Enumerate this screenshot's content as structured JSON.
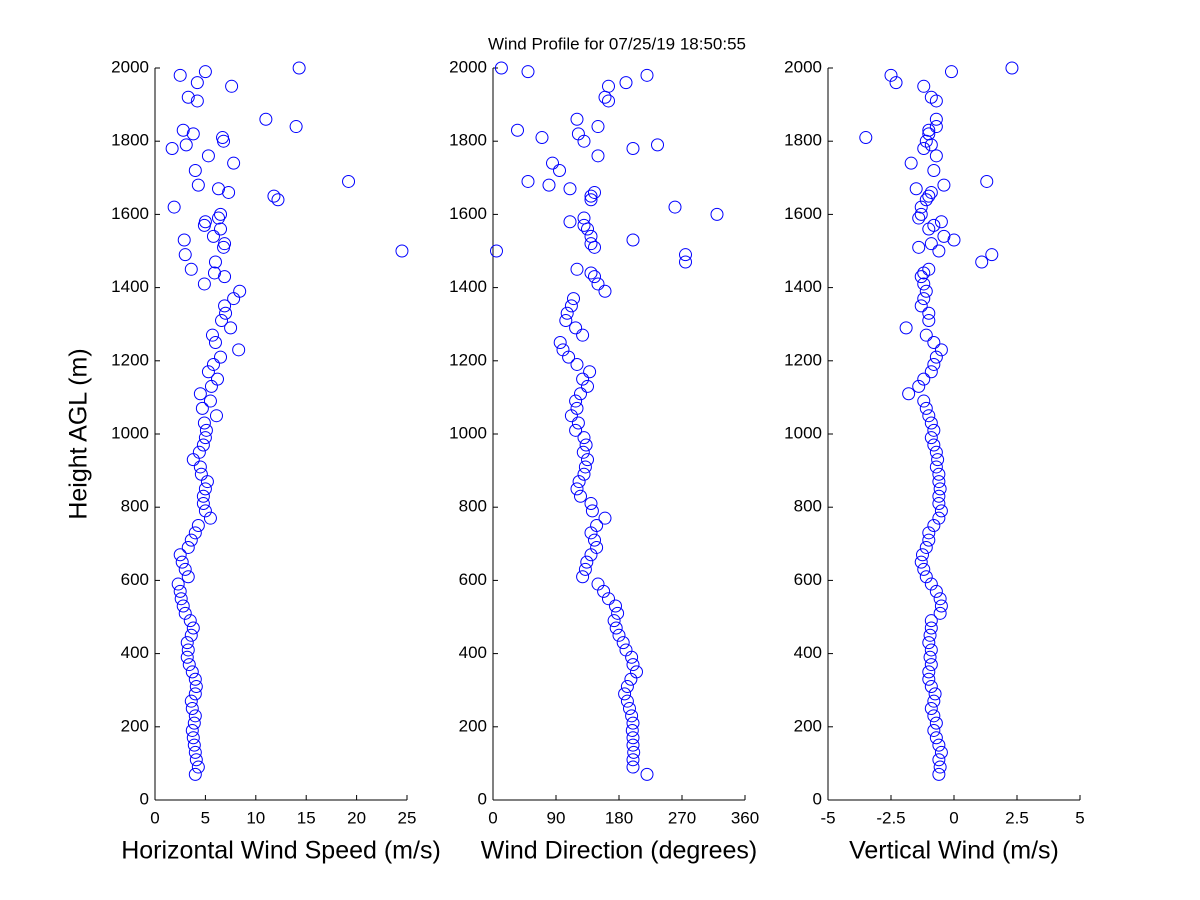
{
  "title": "Wind Profile for  07/25/19 18:50:55",
  "chart_data": [
    {
      "type": "scatter",
      "x_label": "Horizontal Wind Speed (m/s)",
      "y_label": "Height AGL (m)",
      "color": "#0000ff",
      "xlim": [
        0,
        25
      ],
      "xticks": [
        0,
        5,
        10,
        15,
        20,
        25
      ],
      "ylim": [
        0,
        2000
      ],
      "yticks": [
        0,
        200,
        400,
        600,
        800,
        1000,
        1200,
        1400,
        1600,
        1800,
        2000
      ],
      "x": [
        4.0,
        4.3,
        4.1,
        4.0,
        3.9,
        3.8,
        3.7,
        3.9,
        4.0,
        3.7,
        3.6,
        4.0,
        4.1,
        4.0,
        3.7,
        3.4,
        3.2,
        3.3,
        3.2,
        3.6,
        3.8,
        3.5,
        3.0,
        2.8,
        2.6,
        2.5,
        2.3,
        3.3,
        3.0,
        2.7,
        2.5,
        3.3,
        3.6,
        4.0,
        4.3,
        5.5,
        5.0,
        4.8,
        4.8,
        5.0,
        5.2,
        4.6,
        4.5,
        3.8,
        4.4,
        4.8,
        5.0,
        5.1,
        4.9,
        6.1,
        4.7,
        5.5,
        4.5,
        5.6,
        6.2,
        5.3,
        5.8,
        6.5,
        8.3,
        6.0,
        5.7,
        7.5,
        6.6,
        7.0,
        6.9,
        7.8,
        8.4,
        14.3,
        5,
        2.5,
        4.2,
        7.6,
        3.3,
        4.2,
        11,
        14,
        2.8,
        3.8,
        6.7,
        6.8,
        3.1,
        1.7,
        5.3,
        7.8,
        4,
        19.2,
        4.3,
        6.3,
        7.3,
        11.8,
        12.2,
        1.9,
        6.5,
        6.3,
        5.0,
        4.9,
        6.5,
        5.8,
        2.9,
        6.9,
        6.8,
        24.5,
        3,
        6,
        3.6,
        5.9,
        6.9,
        4.9
      ],
      "values": [
        70,
        90,
        110,
        130,
        150,
        170,
        190,
        210,
        230,
        250,
        270,
        290,
        310,
        330,
        350,
        370,
        390,
        410,
        430,
        450,
        470,
        490,
        510,
        530,
        550,
        570,
        590,
        610,
        630,
        650,
        670,
        690,
        710,
        730,
        750,
        770,
        790,
        810,
        830,
        850,
        870,
        890,
        910,
        930,
        950,
        970,
        990,
        1010,
        1030,
        1050,
        1070,
        1090,
        1110,
        1130,
        1150,
        1170,
        1190,
        1210,
        1230,
        1250,
        1270,
        1290,
        1310,
        1330,
        1350,
        1370,
        1390,
        2000,
        1990,
        1980,
        1960,
        1950,
        1920,
        1910,
        1860,
        1840,
        1830,
        1820,
        1810,
        1800,
        1790,
        1780,
        1760,
        1740,
        1720,
        1690,
        1680,
        1670,
        1660,
        1650,
        1640,
        1620,
        1600,
        1590,
        1580,
        1570,
        1560,
        1540,
        1530,
        1520,
        1510,
        1500,
        1490,
        1470,
        1450,
        1440,
        1430,
        1410
      ]
    },
    {
      "type": "scatter",
      "x_label": "Wind Direction (degrees)",
      "color": "#0000ff",
      "xlim": [
        0,
        360
      ],
      "xticks": [
        0,
        90,
        180,
        270,
        360
      ],
      "ylim": [
        0,
        2000
      ],
      "yticks": [
        0,
        200,
        400,
        600,
        800,
        1000,
        1200,
        1400,
        1600,
        1800,
        2000
      ],
      "x": [
        220,
        200,
        200,
        201,
        200,
        200,
        199,
        200,
        198,
        195,
        192,
        188,
        192,
        197,
        205,
        200,
        198,
        190,
        186,
        180,
        176,
        173,
        178,
        175,
        165,
        158,
        150,
        128,
        132,
        134,
        140,
        148,
        145,
        140,
        148,
        160,
        142,
        140,
        125,
        120,
        123,
        130,
        132,
        135,
        129,
        133,
        130,
        118,
        122,
        112,
        120,
        118,
        125,
        135,
        128,
        138,
        120,
        108,
        100,
        96,
        128,
        118,
        104,
        106,
        112,
        115,
        160,
        12,
        50,
        220,
        190,
        165,
        160,
        165,
        120,
        150,
        35,
        122,
        70,
        130,
        235,
        200,
        150,
        85,
        95,
        50,
        80,
        110,
        145,
        140,
        140,
        260,
        320,
        130,
        110,
        130,
        135,
        140,
        200,
        140,
        145,
        5,
        275,
        275,
        120,
        140,
        145,
        150
      ],
      "values": [
        70,
        90,
        110,
        130,
        150,
        170,
        190,
        210,
        230,
        250,
        270,
        290,
        310,
        330,
        350,
        370,
        390,
        410,
        430,
        450,
        470,
        490,
        510,
        530,
        550,
        570,
        590,
        610,
        630,
        650,
        670,
        690,
        710,
        730,
        750,
        770,
        790,
        810,
        830,
        850,
        870,
        890,
        910,
        930,
        950,
        970,
        990,
        1010,
        1030,
        1050,
        1070,
        1090,
        1110,
        1130,
        1150,
        1170,
        1190,
        1210,
        1230,
        1250,
        1270,
        1290,
        1310,
        1330,
        1350,
        1370,
        1390,
        2000,
        1990,
        1980,
        1960,
        1950,
        1920,
        1910,
        1860,
        1840,
        1830,
        1820,
        1810,
        1800,
        1790,
        1780,
        1760,
        1740,
        1720,
        1690,
        1680,
        1670,
        1660,
        1650,
        1640,
        1620,
        1600,
        1590,
        1580,
        1570,
        1560,
        1540,
        1530,
        1520,
        1510,
        1500,
        1490,
        1470,
        1450,
        1440,
        1430,
        1410
      ]
    },
    {
      "type": "scatter",
      "x_label": "Vertical Wind (m/s)",
      "color": "#0000ff",
      "xlim": [
        -5,
        5
      ],
      "xticks": [
        -5,
        -2.5,
        0,
        2.5,
        5
      ],
      "ylim": [
        0,
        2000
      ],
      "yticks": [
        0,
        200,
        400,
        600,
        800,
        1000,
        1200,
        1400,
        1600,
        1800,
        2000
      ],
      "x": [
        -0.6,
        -0.55,
        -0.6,
        -0.5,
        -0.6,
        -0.7,
        -0.8,
        -0.7,
        -0.8,
        -0.9,
        -0.8,
        -0.75,
        -0.9,
        -1.0,
        -1.0,
        -0.9,
        -0.95,
        -0.9,
        -1.0,
        -0.95,
        -0.9,
        -0.9,
        -0.55,
        -0.5,
        -0.55,
        -0.7,
        -0.9,
        -1.1,
        -1.2,
        -1.3,
        -1.25,
        -1.1,
        -1.0,
        -1.0,
        -0.8,
        -0.6,
        -0.5,
        -0.6,
        -0.6,
        -0.55,
        -0.6,
        -0.6,
        -0.7,
        -0.65,
        -0.7,
        -0.8,
        -0.9,
        -0.8,
        -0.9,
        -1.0,
        -1.1,
        -1.2,
        -1.8,
        -1.4,
        -1.2,
        -0.9,
        -0.8,
        -0.7,
        -0.5,
        -0.8,
        -1.1,
        -1.9,
        -1.0,
        -1.0,
        -1.3,
        -1.2,
        -1.1,
        2.3,
        -0.1,
        -2.5,
        -2.3,
        -1.2,
        -0.9,
        -0.7,
        -0.7,
        -0.7,
        -1.0,
        -1.0,
        -3.5,
        -1.1,
        -0.9,
        -1.2,
        -0.7,
        -1.7,
        -0.8,
        1.3,
        -0.4,
        -1.5,
        -0.9,
        -1.0,
        -1.1,
        -1.3,
        -1.3,
        -1.4,
        -0.5,
        -0.8,
        -1.0,
        -0.4,
        0.0,
        -0.9,
        -1.4,
        -0.6,
        1.5,
        1.1,
        -1.0,
        -1.2,
        -1.3,
        -1.2
      ],
      "values": [
        70,
        90,
        110,
        130,
        150,
        170,
        190,
        210,
        230,
        250,
        270,
        290,
        310,
        330,
        350,
        370,
        390,
        410,
        430,
        450,
        470,
        490,
        510,
        530,
        550,
        570,
        590,
        610,
        630,
        650,
        670,
        690,
        710,
        730,
        750,
        770,
        790,
        810,
        830,
        850,
        870,
        890,
        910,
        930,
        950,
        970,
        990,
        1010,
        1030,
        1050,
        1070,
        1090,
        1110,
        1130,
        1150,
        1170,
        1190,
        1210,
        1230,
        1250,
        1270,
        1290,
        1310,
        1330,
        1350,
        1370,
        1390,
        2000,
        1990,
        1980,
        1960,
        1950,
        1920,
        1910,
        1860,
        1840,
        1830,
        1820,
        1810,
        1800,
        1790,
        1780,
        1760,
        1740,
        1720,
        1690,
        1680,
        1670,
        1660,
        1650,
        1640,
        1620,
        1600,
        1590,
        1580,
        1570,
        1560,
        1540,
        1530,
        1520,
        1510,
        1500,
        1490,
        1470,
        1450,
        1440,
        1430,
        1410
      ]
    }
  ]
}
